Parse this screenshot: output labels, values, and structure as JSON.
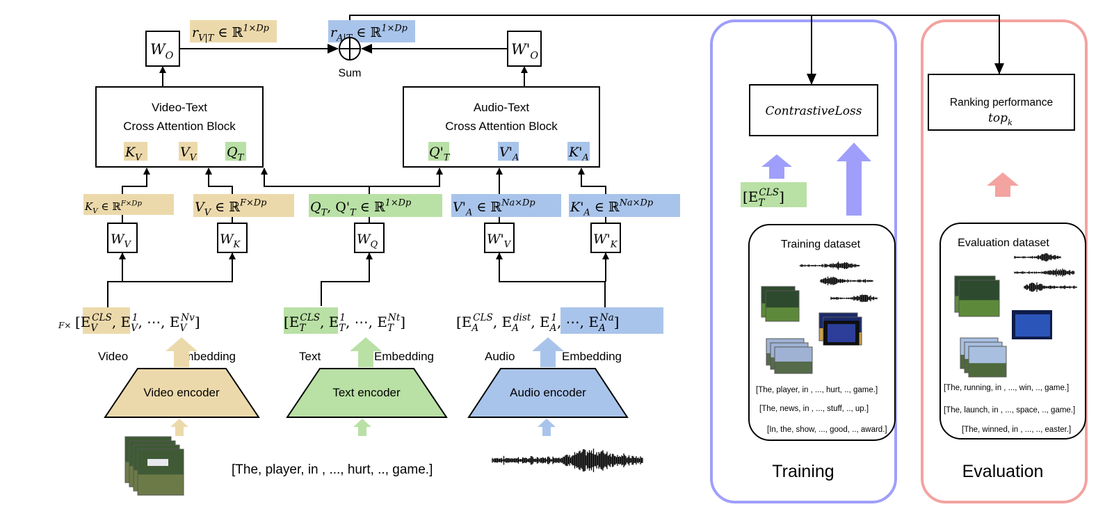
{
  "colors": {
    "video": "#ecd9ab",
    "text": "#b9e0a5",
    "audio": "#a9c4eb",
    "training": "#9f9ffb",
    "evaluation": "#f3a3a0"
  },
  "top": {
    "wo": "W_{O}",
    "wo_prime": "W'_{O}",
    "sum_label": "Sum",
    "r_vt": "r_{V|T} ∈ ℝ^{1×Dp}",
    "r_at": "r_{A|T} ∈ ℝ^{1×Dp}"
  },
  "video_text_block": {
    "title1": "Video-Text",
    "title2": "Cross Attention Block",
    "k": "K_{V}",
    "v": "V_{V}",
    "q": "Q_{T}"
  },
  "audio_text_block": {
    "title1": "Audio-Text",
    "title2": "Cross Attention Block",
    "q": "Q'_{T}",
    "v": "V'_{A}",
    "k": "K'_{A}"
  },
  "projections": {
    "kv_dim": "K_{V} ∈ ℝ^{F×Dp}",
    "vv_dim": "V_{V} ∈ ℝ^{F×Dp}",
    "qt_dim": "Q_{T}, Q'_{T} ∈ ℝ^{1×Dp}",
    "va_dim": "V'_{A} ∈ ℝ^{Na×Dp}",
    "ka_dim": "K'_{A} ∈ ℝ^{Na×Dp}",
    "wv": "W_{V}",
    "wk": "W_{K}",
    "wq": "W_{Q}",
    "wv_prime": "W'_{V}",
    "wk_prime": "W'_{K}"
  },
  "embeddings": {
    "video_prefix": "F×",
    "video_seq": "[E_{V}^{CLS}, E_{V}^{1}, ⋯, E_{V}^{Nv}]",
    "text_seq": "[E_{T}^{CLS}, E_{T}^{1}, ⋯, E_{T}^{Nt}]",
    "audio_seq": "[E_{A}^{CLS}, E_{A}^{dist}, E_{A}^{1}, ⋯, E_{A}^{Na}]",
    "video_label": "Video",
    "text_label": "Text",
    "audio_label": "Audio",
    "embedding_label": "Embedding"
  },
  "encoders": {
    "video": "Video encoder",
    "text": "Text encoder",
    "audio": "Audio encoder"
  },
  "inputs": {
    "caption": "[The, player, in , ..., hurt, .., game.]"
  },
  "training": {
    "loss": "ContrastiveLoss",
    "cls_token": "[E_{T}^{CLS}]",
    "dataset_title": "Training dataset",
    "captions": [
      "[The, player, in , ..., hurt, .., game.]",
      "[The, news, in , ..., stuff, .., up.]",
      "[In, the, show, ..., good, .., award.]"
    ],
    "label": "Training"
  },
  "evaluation": {
    "ranking_title": "Ranking performance",
    "ranking_metric": "top_{k}",
    "dataset_title": "Evaluation dataset",
    "captions": [
      "[The, running, in , ..., win, .., game.]",
      "[The, launch, in , ..., space, .., game.]",
      "[The, winned, in , ..., .., easter.]"
    ],
    "label": "Evaluation"
  }
}
